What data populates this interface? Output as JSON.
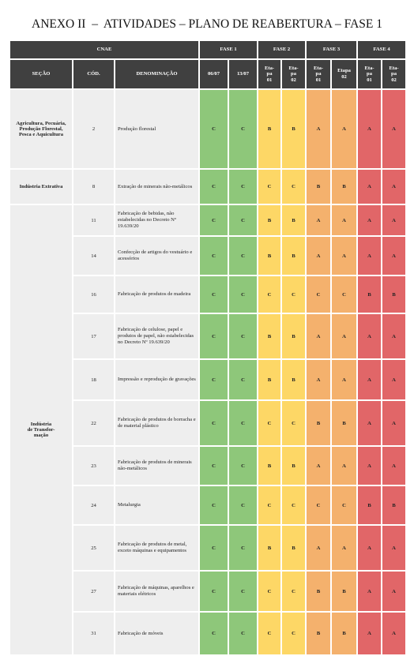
{
  "title": "ANEXO II  –  ATIVIDADES – PLANO DE REABERTURA – FASE 1",
  "table": {
    "header_groups": [
      "CNAE",
      "FASE 1",
      "FASE 2",
      "FASE 3",
      "FASE 4"
    ],
    "columns": [
      "SEÇÃO",
      "CÓD.",
      "DENOMINAÇÃO",
      "06/07",
      "13/07",
      "Eta-\npa\n01",
      "Eta-\npa\n02",
      "Eta-\npa\n01",
      "Etapa\n02",
      "Eta-\npa\n01",
      "Eta-\npa\n02"
    ],
    "sections": [
      {
        "label": "Agricultura, Pecuária, Produção Florestal, Pesca e Aquicultura",
        "rows": [
          {
            "code": "2",
            "name": "Produção florestal",
            "values": [
              "C",
              "C",
              "B",
              "B",
              "A",
              "A",
              "A",
              "A"
            ]
          }
        ]
      },
      {
        "label": "Indústria Extrativa",
        "rows": [
          {
            "code": "8",
            "name": "Extração de minerais não-metálicos",
            "values": [
              "C",
              "C",
              "C",
              "C",
              "B",
              "B",
              "A",
              "A"
            ]
          }
        ]
      },
      {
        "label": "Indústria\nde Transfor-\nmação",
        "rows": [
          {
            "code": "11",
            "name": "Fabricação de bebidas, não estabelecidas no Decreto Nº 19.639/20",
            "values": [
              "C",
              "C",
              "B",
              "B",
              "A",
              "A",
              "A",
              "A"
            ]
          },
          {
            "code": "14",
            "name": "Confecção de artigos do vestuário e acessórios",
            "values": [
              "C",
              "C",
              "B",
              "B",
              "A",
              "A",
              "A",
              "A"
            ]
          },
          {
            "code": "16",
            "name": "Fabricação de produtos de madeira",
            "values": [
              "C",
              "C",
              "C",
              "C",
              "C",
              "C",
              "B",
              "B"
            ]
          },
          {
            "code": "17",
            "name": "Fabricação de celulose, papel e produtos de papel, não estabelecidas no Decreto Nº 19.639/20",
            "values": [
              "C",
              "C",
              "B",
              "B",
              "A",
              "A",
              "A",
              "A"
            ]
          },
          {
            "code": "18",
            "name": "Impressão e reprodução de gravações",
            "values": [
              "C",
              "C",
              "B",
              "B",
              "A",
              "A",
              "A",
              "A"
            ]
          },
          {
            "code": "22",
            "name": "Fabricação de produtos de borracha e de material plástico",
            "values": [
              "C",
              "C",
              "C",
              "C",
              "B",
              "B",
              "A",
              "A"
            ]
          },
          {
            "code": "23",
            "name": "Fabricação de produtos de minerais não-metálicos",
            "values": [
              "C",
              "C",
              "B",
              "B",
              "A",
              "A",
              "A",
              "A"
            ]
          },
          {
            "code": "24",
            "name": "Metalurgia",
            "values": [
              "C",
              "C",
              "C",
              "C",
              "C",
              "C",
              "B",
              "B"
            ]
          },
          {
            "code": "25",
            "name": "Fabricação de produtos de metal, exceto máquinas e equipamentos",
            "values": [
              "C",
              "C",
              "B",
              "B",
              "A",
              "A",
              "A",
              "A"
            ]
          },
          {
            "code": "27",
            "name": "Fabricação de máquinas, aparelhos e materiais elétricos",
            "values": [
              "C",
              "C",
              "C",
              "C",
              "B",
              "B",
              "A",
              "A"
            ]
          },
          {
            "code": "31",
            "name": "Fabricação de móveis",
            "values": [
              "C",
              "C",
              "C",
              "C",
              "B",
              "B",
              "A",
              "A"
            ]
          }
        ]
      }
    ]
  }
}
